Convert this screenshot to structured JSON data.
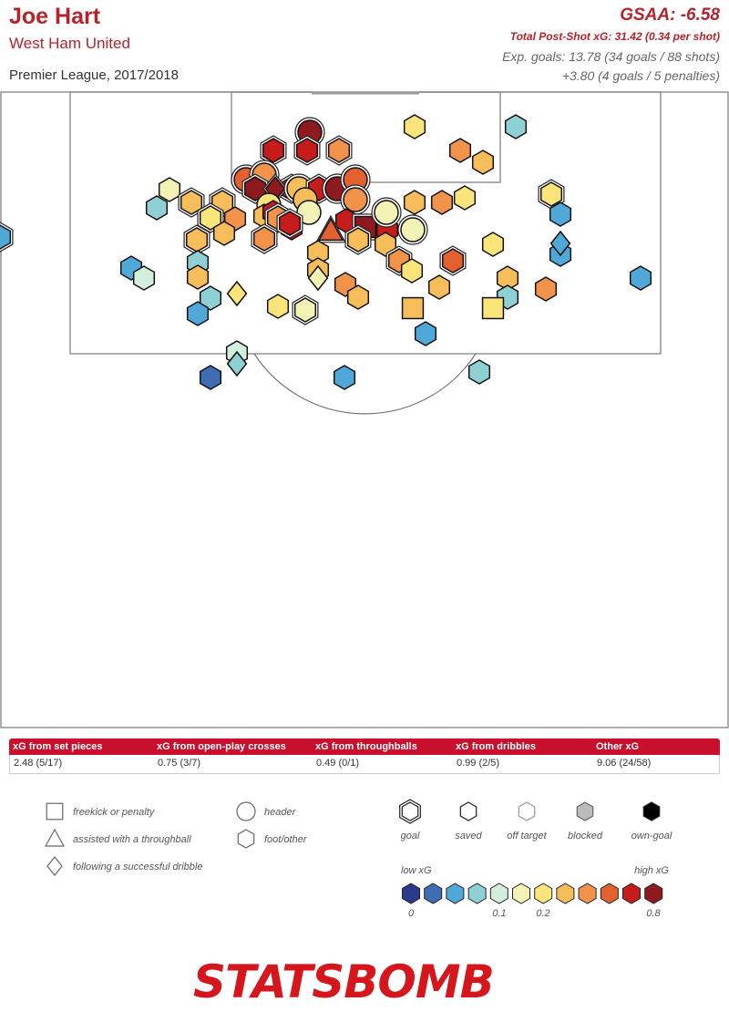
{
  "header": {
    "player": "Joe Hart",
    "team": "West Ham United",
    "competition": "Premier League, 2017/2018",
    "gsaa": "GSAA: -6.58",
    "psxg": "Total Post-Shot xG: 31.42 (0.34 per shot)",
    "exp_goals": "Exp. goals: 13.78 (34 goals / 88 shots)",
    "penalties": "+3.80 (4 goals / 5 penalties)"
  },
  "stats": [
    {
      "label": "xG from set pieces",
      "value": "2.48 (5/17)"
    },
    {
      "label": "xG from open-play crosses",
      "value": "0.75 (3/7)"
    },
    {
      "label": "xG from throughballs",
      "value": "0.49 (0/1)"
    },
    {
      "label": "xG from dribbles",
      "value": "0.99 (2/5)"
    },
    {
      "label": "Other xG",
      "value": "9.06 (24/58)"
    }
  ],
  "legend": {
    "shapes": [
      {
        "shape": "square",
        "label": "freekick or penalty"
      },
      {
        "shape": "triangle",
        "label": "assisted with a throughball"
      },
      {
        "shape": "diamond",
        "label": "following a successful dribble"
      },
      {
        "shape": "circle",
        "label": "header"
      },
      {
        "shape": "hexagon",
        "label": "foot/other"
      }
    ],
    "outcomes": [
      {
        "outcome": "goal",
        "label": "goal"
      },
      {
        "outcome": "saved",
        "label": "saved"
      },
      {
        "outcome": "off",
        "label": "off target"
      },
      {
        "outcome": "blocked",
        "label": "blocked"
      },
      {
        "outcome": "own",
        "label": "own-goal"
      }
    ],
    "scale_low": "low xG",
    "scale_high": "high xG",
    "scale_ticks": [
      "0",
      "0.1",
      "0.2",
      "0.8"
    ],
    "scale_colors": [
      "#2a3a8c",
      "#3e6db3",
      "#4fa8d8",
      "#8fd0d4",
      "#d4eedd",
      "#f2f2b4",
      "#fbe57a",
      "#f6bd5a",
      "#f1934a",
      "#e2612f",
      "#c61c1c",
      "#8e1a1e"
    ]
  },
  "brand": {
    "logo": "STATSBOMB",
    "accent": "#c8102e"
  },
  "chart_data": {
    "type": "scatter",
    "title": "Joe Hart",
    "description_units": "pitch coordinates (yards, 120x80 pitch, goal at y=120); value = xG",
    "shots": [
      {
        "x": 34,
        "y": 115.5,
        "xg": 0.82,
        "shape": "circle",
        "outcome": "goal"
      },
      {
        "x": 30,
        "y": 113.5,
        "xg": 0.7,
        "shape": "hexagon",
        "outcome": "goal"
      },
      {
        "x": 33.7,
        "y": 113.5,
        "xg": 0.7,
        "shape": "hexagon",
        "outcome": "goal"
      },
      {
        "x": 37.2,
        "y": 113.5,
        "xg": 0.45,
        "shape": "hexagon",
        "outcome": "goal"
      },
      {
        "x": 50.5,
        "y": 113.5,
        "xg": 0.42,
        "shape": "hexagon",
        "outcome": "saved"
      },
      {
        "x": 53,
        "y": 112.2,
        "xg": 0.35,
        "shape": "hexagon",
        "outcome": "saved"
      },
      {
        "x": 45.5,
        "y": 116.1,
        "xg": 0.2,
        "shape": "hexagon",
        "outcome": "saved"
      },
      {
        "x": 56.6,
        "y": 116.1,
        "xg": 0.08,
        "shape": "hexagon",
        "outcome": "saved"
      },
      {
        "x": 60.5,
        "y": 108.7,
        "xg": 0.2,
        "shape": "hexagon",
        "outcome": "goal"
      },
      {
        "x": 18.6,
        "y": 109.2,
        "xg": 0.17,
        "shape": "hexagon",
        "outcome": "saved"
      },
      {
        "x": 27,
        "y": 110.3,
        "xg": 0.6,
        "shape": "circle",
        "outcome": "goal"
      },
      {
        "x": 29,
        "y": 110.8,
        "xg": 0.38,
        "shape": "circle",
        "outcome": "goal"
      },
      {
        "x": 32,
        "y": 109.3,
        "xg": 0.68,
        "shape": "hexagon",
        "outcome": "goal"
      },
      {
        "x": 28,
        "y": 109.3,
        "xg": 0.74,
        "shape": "hexagon",
        "outcome": "goal"
      },
      {
        "x": 30.2,
        "y": 109.3,
        "xg": 0.76,
        "shape": "diamond",
        "outcome": "goal"
      },
      {
        "x": 32.8,
        "y": 109.3,
        "xg": 0.28,
        "shape": "circle",
        "outcome": "goal"
      },
      {
        "x": 35,
        "y": 109.3,
        "xg": 0.7,
        "shape": "hexagon",
        "outcome": "goal"
      },
      {
        "x": 37,
        "y": 109.3,
        "xg": 0.76,
        "shape": "circle",
        "outcome": "goal"
      },
      {
        "x": 39,
        "y": 110.3,
        "xg": 0.5,
        "shape": "circle",
        "outcome": "goal"
      },
      {
        "x": 33.5,
        "y": 108.1,
        "xg": 0.3,
        "shape": "circle",
        "outcome": "saved"
      },
      {
        "x": 39,
        "y": 108.1,
        "xg": 0.38,
        "shape": "circle",
        "outcome": "goal"
      },
      {
        "x": 45.5,
        "y": 107.8,
        "xg": 0.36,
        "shape": "hexagon",
        "outcome": "saved"
      },
      {
        "x": 48.5,
        "y": 107.8,
        "xg": 0.44,
        "shape": "hexagon",
        "outcome": "saved"
      },
      {
        "x": 51,
        "y": 108.3,
        "xg": 0.18,
        "shape": "hexagon",
        "outcome": "saved"
      },
      {
        "x": 29.5,
        "y": 107.5,
        "xg": 0.24,
        "shape": "circle",
        "outcome": "saved"
      },
      {
        "x": 29,
        "y": 106.3,
        "xg": 0.35,
        "shape": "hexagon",
        "outcome": "saved"
      },
      {
        "x": 33.9,
        "y": 106.7,
        "xg": 0.17,
        "shape": "circle",
        "outcome": "saved"
      },
      {
        "x": 38,
        "y": 105.8,
        "xg": 0.62,
        "shape": "hexagon",
        "outcome": "saved"
      },
      {
        "x": 30,
        "y": 106.7,
        "xg": 0.66,
        "shape": "hexagon",
        "outcome": "saved"
      },
      {
        "x": 17.2,
        "y": 107.2,
        "xg": 0.08,
        "shape": "hexagon",
        "outcome": "saved"
      },
      {
        "x": 21,
        "y": 107.8,
        "xg": 0.32,
        "shape": "hexagon",
        "outcome": "goal"
      },
      {
        "x": 24.4,
        "y": 107.8,
        "xg": 0.32,
        "shape": "hexagon",
        "outcome": "goal"
      },
      {
        "x": 23.1,
        "y": 106.1,
        "xg": 0.24,
        "shape": "hexagon",
        "outcome": "goal"
      },
      {
        "x": 25.8,
        "y": 106,
        "xg": 0.38,
        "shape": "hexagon",
        "outcome": "saved"
      },
      {
        "x": 30.5,
        "y": 106.1,
        "xg": 0.47,
        "shape": "hexagon",
        "outcome": "goal"
      },
      {
        "x": 32,
        "y": 105,
        "xg": 0.62,
        "shape": "hexagon",
        "outcome": "saved"
      },
      {
        "x": 24.6,
        "y": 104.4,
        "xg": 0.28,
        "shape": "hexagon",
        "outcome": "saved"
      },
      {
        "x": 36.3,
        "y": 104.7,
        "xg": 0.58,
        "shape": "triangle",
        "outcome": "goal"
      },
      {
        "x": 40.1,
        "y": 105.1,
        "xg": 0.76,
        "shape": "square",
        "outcome": "goal"
      },
      {
        "x": 42.5,
        "y": 104.8,
        "xg": 0.7,
        "shape": "hexagon",
        "outcome": "saved"
      },
      {
        "x": 45.3,
        "y": 104.8,
        "xg": 0.16,
        "shape": "circle",
        "outcome": "goal"
      },
      {
        "x": 42.4,
        "y": 106.7,
        "xg": 0.14,
        "shape": "circle",
        "outcome": "goal"
      },
      {
        "x": 31.8,
        "y": 105.5,
        "xg": 0.66,
        "shape": "hexagon",
        "outcome": "goal"
      },
      {
        "x": 29,
        "y": 103.8,
        "xg": 0.38,
        "shape": "hexagon",
        "outcome": "goal"
      },
      {
        "x": 21.6,
        "y": 103.7,
        "xg": 0.32,
        "shape": "hexagon",
        "outcome": "goal"
      },
      {
        "x": 39.3,
        "y": 103.7,
        "xg": 0.26,
        "shape": "hexagon",
        "outcome": "goal"
      },
      {
        "x": 42.3,
        "y": 103.2,
        "xg": 0.3,
        "shape": "hexagon",
        "outcome": "saved"
      },
      {
        "x": 34.9,
        "y": 102.3,
        "xg": 0.3,
        "shape": "hexagon",
        "outcome": "saved"
      },
      {
        "x": 0,
        "y": 104,
        "xg": 0.06,
        "shape": "hexagon",
        "outcome": "goal"
      },
      {
        "x": 54.1,
        "y": 103.2,
        "xg": 0.22,
        "shape": "hexagon",
        "outcome": "saved"
      },
      {
        "x": 61.5,
        "y": 102.1,
        "xg": 0.06,
        "shape": "hexagon",
        "outcome": "saved"
      },
      {
        "x": 61.5,
        "y": 103.3,
        "xg": 0.06,
        "shape": "diamond",
        "outcome": "saved"
      },
      {
        "x": 61.5,
        "y": 106.5,
        "xg": 0.04,
        "shape": "hexagon",
        "outcome": "saved"
      },
      {
        "x": 43.8,
        "y": 101.4,
        "xg": 0.38,
        "shape": "hexagon",
        "outcome": "goal"
      },
      {
        "x": 49.7,
        "y": 101.4,
        "xg": 0.56,
        "shape": "hexagon",
        "outcome": "goal"
      },
      {
        "x": 14.4,
        "y": 100.6,
        "xg": 0.06,
        "shape": "hexagon",
        "outcome": "saved"
      },
      {
        "x": 21.7,
        "y": 101.2,
        "xg": 0.08,
        "shape": "hexagon",
        "outcome": "saved"
      },
      {
        "x": 34.9,
        "y": 100.4,
        "xg": 0.32,
        "shape": "hexagon",
        "outcome": "saved"
      },
      {
        "x": 15.8,
        "y": 99.5,
        "xg": 0.1,
        "shape": "hexagon",
        "outcome": "saved"
      },
      {
        "x": 21.7,
        "y": 99.6,
        "xg": 0.32,
        "shape": "hexagon",
        "outcome": "saved"
      },
      {
        "x": 34.9,
        "y": 99.5,
        "xg": 0.17,
        "shape": "diamond",
        "outcome": "saved"
      },
      {
        "x": 45.2,
        "y": 100.3,
        "xg": 0.2,
        "shape": "hexagon",
        "outcome": "saved"
      },
      {
        "x": 37.9,
        "y": 98.8,
        "xg": 0.46,
        "shape": "hexagon",
        "outcome": "saved"
      },
      {
        "x": 48.2,
        "y": 98.5,
        "xg": 0.32,
        "shape": "hexagon",
        "outcome": "saved"
      },
      {
        "x": 55.7,
        "y": 99.5,
        "xg": 0.28,
        "shape": "hexagon",
        "outcome": "saved"
      },
      {
        "x": 70.3,
        "y": 99.5,
        "xg": 0.05,
        "shape": "hexagon",
        "outcome": "saved"
      },
      {
        "x": 26,
        "y": 97.8,
        "xg": 0.2,
        "shape": "diamond",
        "outcome": "saved"
      },
      {
        "x": 23.1,
        "y": 97.3,
        "xg": 0.08,
        "shape": "hexagon",
        "outcome": "saved"
      },
      {
        "x": 39.3,
        "y": 97.4,
        "xg": 0.3,
        "shape": "hexagon",
        "outcome": "saved"
      },
      {
        "x": 55.7,
        "y": 97.4,
        "xg": 0.08,
        "shape": "hexagon",
        "outcome": "saved"
      },
      {
        "x": 59.9,
        "y": 98.3,
        "xg": 0.4,
        "shape": "hexagon",
        "outcome": "saved"
      },
      {
        "x": 30.5,
        "y": 96.4,
        "xg": 0.18,
        "shape": "hexagon",
        "outcome": "saved"
      },
      {
        "x": 33.5,
        "y": 96,
        "xg": 0.14,
        "shape": "hexagon",
        "outcome": "goal"
      },
      {
        "x": 45.3,
        "y": 96.2,
        "xg": 0.34,
        "shape": "square",
        "outcome": "saved"
      },
      {
        "x": 54.1,
        "y": 96.2,
        "xg": 0.2,
        "shape": "square",
        "outcome": "saved"
      },
      {
        "x": 21.7,
        "y": 95.6,
        "xg": 0.06,
        "shape": "hexagon",
        "outcome": "saved"
      },
      {
        "x": 46.7,
        "y": 93.4,
        "xg": 0.06,
        "shape": "hexagon",
        "outcome": "saved"
      },
      {
        "x": 26,
        "y": 91.3,
        "xg": 0.1,
        "shape": "hexagon",
        "outcome": "saved"
      },
      {
        "x": 26,
        "y": 90.1,
        "xg": 0.08,
        "shape": "diamond",
        "outcome": "saved"
      },
      {
        "x": 52.6,
        "y": 89.2,
        "xg": 0.08,
        "shape": "hexagon",
        "outcome": "saved"
      },
      {
        "x": 23.1,
        "y": 88.6,
        "xg": 0.02,
        "shape": "hexagon",
        "outcome": "saved"
      },
      {
        "x": 37.8,
        "y": 88.6,
        "xg": 0.05,
        "shape": "hexagon",
        "outcome": "saved"
      }
    ]
  }
}
